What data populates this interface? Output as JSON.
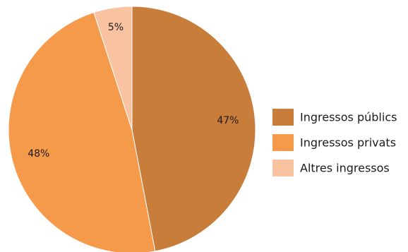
{
  "chart_data": {
    "type": "pie",
    "slices": [
      {
        "label": "Ingressos públics",
        "value": 47,
        "display": "47%",
        "color": "#C97D3A"
      },
      {
        "label": "Ingressos privats",
        "value": 48,
        "display": "48%",
        "color": "#F59A4B"
      },
      {
        "label": "Altres ingressos",
        "value": 5,
        "display": "5%",
        "color": "#F9C2A0"
      }
    ],
    "start_angle_deg": 0,
    "direction": "clockwise",
    "legend_position": "right"
  }
}
